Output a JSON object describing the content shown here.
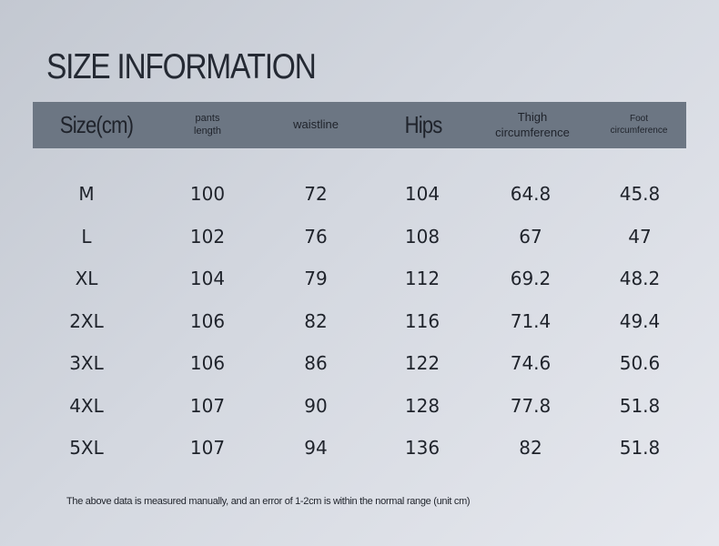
{
  "title": "SIZE INFORMATION",
  "columns": [
    {
      "label_line1": "Size(cm)",
      "label_line2": ""
    },
    {
      "label_line1": "pants",
      "label_line2": "length"
    },
    {
      "label_line1": "waistline",
      "label_line2": ""
    },
    {
      "label_line1": "Hips",
      "label_line2": ""
    },
    {
      "label_line1": "Thigh",
      "label_line2": "circumference"
    },
    {
      "label_line1": "Foot",
      "label_line2": "circumference"
    }
  ],
  "rows": [
    {
      "size": "M",
      "pants_length": "100",
      "waistline": "72",
      "hips": "104",
      "thigh": "64.8",
      "foot": "45.8"
    },
    {
      "size": "L",
      "pants_length": "102",
      "waistline": "76",
      "hips": "108",
      "thigh": "67",
      "foot": "47"
    },
    {
      "size": "XL",
      "pants_length": "104",
      "waistline": "79",
      "hips": "112",
      "thigh": "69.2",
      "foot": "48.2"
    },
    {
      "size": "2XL",
      "pants_length": "106",
      "waistline": "82",
      "hips": "116",
      "thigh": "71.4",
      "foot": "49.4"
    },
    {
      "size": "3XL",
      "pants_length": "106",
      "waistline": "86",
      "hips": "122",
      "thigh": "74.6",
      "foot": "50.6"
    },
    {
      "size": "4XL",
      "pants_length": "107",
      "waistline": "90",
      "hips": "128",
      "thigh": "77.8",
      "foot": "51.8"
    },
    {
      "size": "5XL",
      "pants_length": "107",
      "waistline": "94",
      "hips": "136",
      "thigh": "82",
      "foot": "51.8"
    }
  ],
  "note": "The above data is measured manually, and an error of 1-2cm is within the normal range (unit cm)",
  "colors": {
    "header_bar": "#6c7683",
    "text": "#1f232b"
  }
}
